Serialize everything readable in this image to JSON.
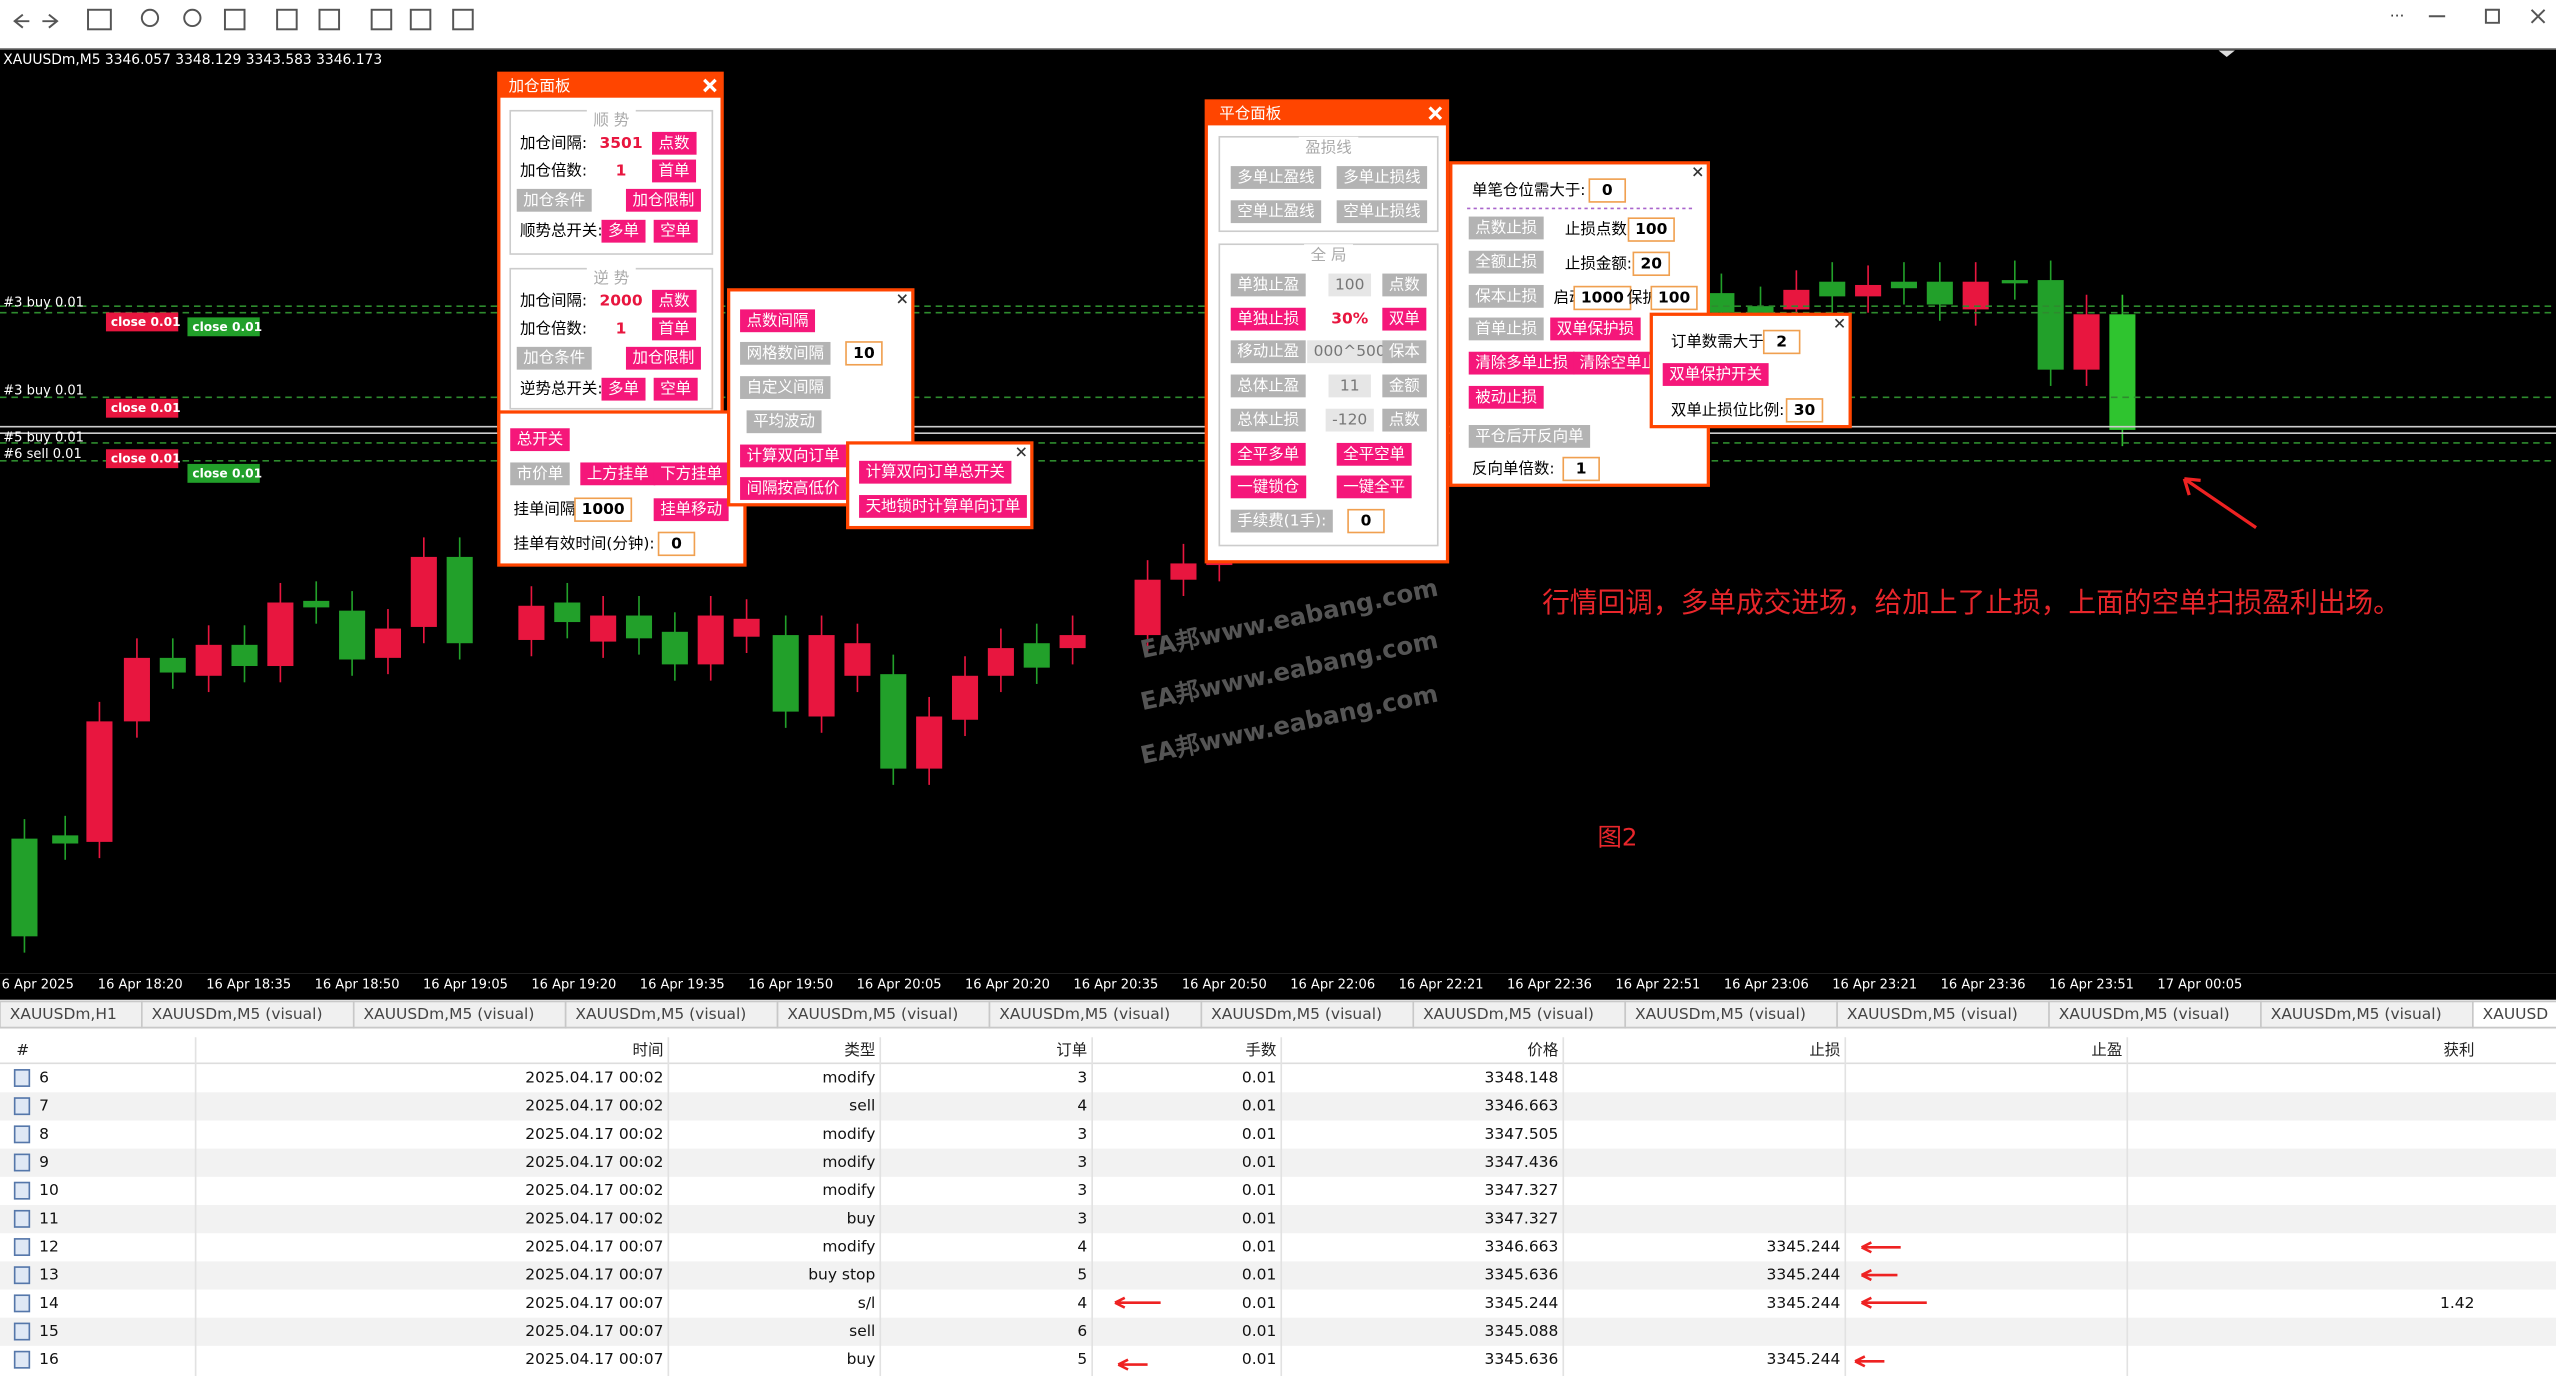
{
  "header": {
    "symbol_info": "XAUUSDm,M5  3346.057 3348.129 3343.583 3346.173"
  },
  "chart": {
    "order_labels": [
      "#3 buy 0.01",
      "#3 buy 0.01",
      "#5 buy 0.01",
      "#6 sell 0.01"
    ],
    "close_buttons": [
      "close 0.01",
      "close 0.01",
      "close 0.01",
      "close 0.01",
      "close 0.01"
    ],
    "time_labels": [
      "6 Apr 2025",
      "16 Apr 18:20",
      "16 Apr 18:35",
      "16 Apr 18:50",
      "16 Apr 19:05",
      "16 Apr 19:20",
      "16 Apr 19:35",
      "16 Apr 19:50",
      "16 Apr 20:05",
      "16 Apr 20:20",
      "16 Apr 20:35",
      "16 Apr 20:50",
      "16 Apr 22:06",
      "16 Apr 22:21",
      "16 Apr 22:36",
      "16 Apr 22:51",
      "16 Apr 23:06",
      "16 Apr 23:21",
      "16 Apr 23:36",
      "16 Apr 23:51",
      "17 Apr 00:05"
    ],
    "watermarks": [
      "EA邦www.eabang.com",
      "EA邦www.eabang.com",
      "EA邦www.eabang.com"
    ],
    "annotation": "行情回调，多单成交进场，给加上了止损，上面的空单扫损盈利出场。",
    "figure_label": "图2"
  },
  "add_panel": {
    "title": "加仓面板",
    "items": [
      "顺 势",
      "加仓间隔:",
      "3501",
      "点数",
      "加仓倍数:",
      "1",
      "首单",
      "加仓条件",
      "加仓限制",
      "顺势总开关:",
      "多单",
      "空单",
      "逆 势",
      "加仓间隔:",
      "2000",
      "点数",
      "加仓倍数:",
      "1",
      "首单",
      "加仓条件",
      "加仓限制",
      "逆势总开关:",
      "多单",
      "空单"
    ]
  },
  "pending_panel": {
    "items": [
      "总开关",
      "市价单",
      "上方挂单",
      "下方挂单",
      "挂单间隔:",
      "1000",
      "挂单移动",
      "挂单有效时间(分钟):",
      "0"
    ]
  },
  "grid_panel": {
    "items": [
      "点数间隔",
      "网格数间隔",
      "10",
      "自定义间隔",
      "平均波动",
      "计算双向订单",
      "间隔按高低价"
    ]
  },
  "lock_panel": {
    "items": [
      "计算双向订单总开关",
      "天地锁时计算单向订单"
    ]
  },
  "close_panel": {
    "title": "平仓面板",
    "items": [
      "盈损线",
      "多单止盈线",
      "多单止损线",
      "空单止盈线",
      "空单止损线",
      "全 局",
      "单独止盈",
      "100",
      "点数",
      "单独止损",
      "30%",
      "双单",
      "移动止盈",
      "000^500",
      "保本",
      "总体止盈",
      "11",
      "金额",
      "总体止损",
      "-120",
      "点数",
      "全平多单",
      "全平空单",
      "一键锁仓",
      "一键全平",
      "手续费(1手):",
      "0"
    ]
  },
  "sl_panel": {
    "items": [
      "单笔仓位需大于:",
      "0",
      "点数止损",
      "止损点数:",
      "100",
      "全额止损",
      "止损金额:",
      "20",
      "保本止损",
      "启动:",
      "1000",
      "保护:",
      "100",
      "首单止损",
      "双单保护损",
      "清除多单止损",
      "清除空单止损",
      "被动止损",
      "平仓后开反向单",
      "反向单倍数:",
      "1"
    ]
  },
  "protect_panel": {
    "items": [
      "订单数需大于:",
      "2",
      "双单保护开关",
      "双单止损位比例:",
      "30"
    ]
  },
  "tabs": [
    "XAUUSDm,H1",
    "XAUUSDm,M5 (visual)",
    "XAUUSDm,M5 (visual)",
    "XAUUSDm,M5 (visual)",
    "XAUUSDm,M5 (visual)",
    "XAUUSDm,M5 (visual)",
    "XAUUSDm,M5 (visual)",
    "XAUUSDm,M5 (visual)",
    "XAUUSDm,M5 (visual)",
    "XAUUSDm,M5 (visual)",
    "XAUUSDm,M5 (visual)",
    "XAUUSDm,M5 (visual)",
    "XAUUSD"
  ],
  "table": {
    "headers": [
      "#",
      "时间",
      "类型",
      "订单",
      "手数",
      "价格",
      "止损",
      "止盈",
      "获利"
    ],
    "rows": [
      {
        "id": "6",
        "time": "2025.04.17 00:02",
        "type": "modify",
        "order": "3",
        "lots": "0.01",
        "price": "3348.148"
      },
      {
        "id": "7",
        "time": "2025.04.17 00:02",
        "type": "sell",
        "order": "4",
        "lots": "0.01",
        "price": "3346.663"
      },
      {
        "id": "8",
        "time": "2025.04.17 00:02",
        "type": "modify",
        "order": "3",
        "lots": "0.01",
        "price": "3347.505"
      },
      {
        "id": "9",
        "time": "2025.04.17 00:02",
        "type": "modify",
        "order": "3",
        "lots": "0.01",
        "price": "3347.436"
      },
      {
        "id": "10",
        "time": "2025.04.17 00:02",
        "type": "modify",
        "order": "3",
        "lots": "0.01",
        "price": "3347.327"
      },
      {
        "id": "11",
        "time": "2025.04.17 00:02",
        "type": "buy",
        "order": "3",
        "lots": "0.01",
        "price": "3347.327"
      },
      {
        "id": "12",
        "time": "2025.04.17 00:07",
        "type": "modify",
        "order": "4",
        "lots": "0.01",
        "price": "3346.663",
        "sl": "3345.244"
      },
      {
        "id": "13",
        "time": "2025.04.17 00:07",
        "type": "buy stop",
        "order": "5",
        "lots": "0.01",
        "price": "3345.636",
        "sl": "3345.244"
      },
      {
        "id": "14",
        "time": "2025.04.17 00:07",
        "type": "s/l",
        "order": "4",
        "lots": "0.01",
        "price": "3345.244",
        "sl": "3345.244",
        "profit": "1.42"
      },
      {
        "id": "15",
        "time": "2025.04.17 00:07",
        "type": "sell",
        "order": "6",
        "lots": "0.01",
        "price": "3345.088"
      },
      {
        "id": "16",
        "time": "2025.04.17 00:07",
        "type": "buy",
        "order": "5",
        "lots": "0.01",
        "price": "3345.636",
        "sl": "3345.244"
      }
    ]
  }
}
